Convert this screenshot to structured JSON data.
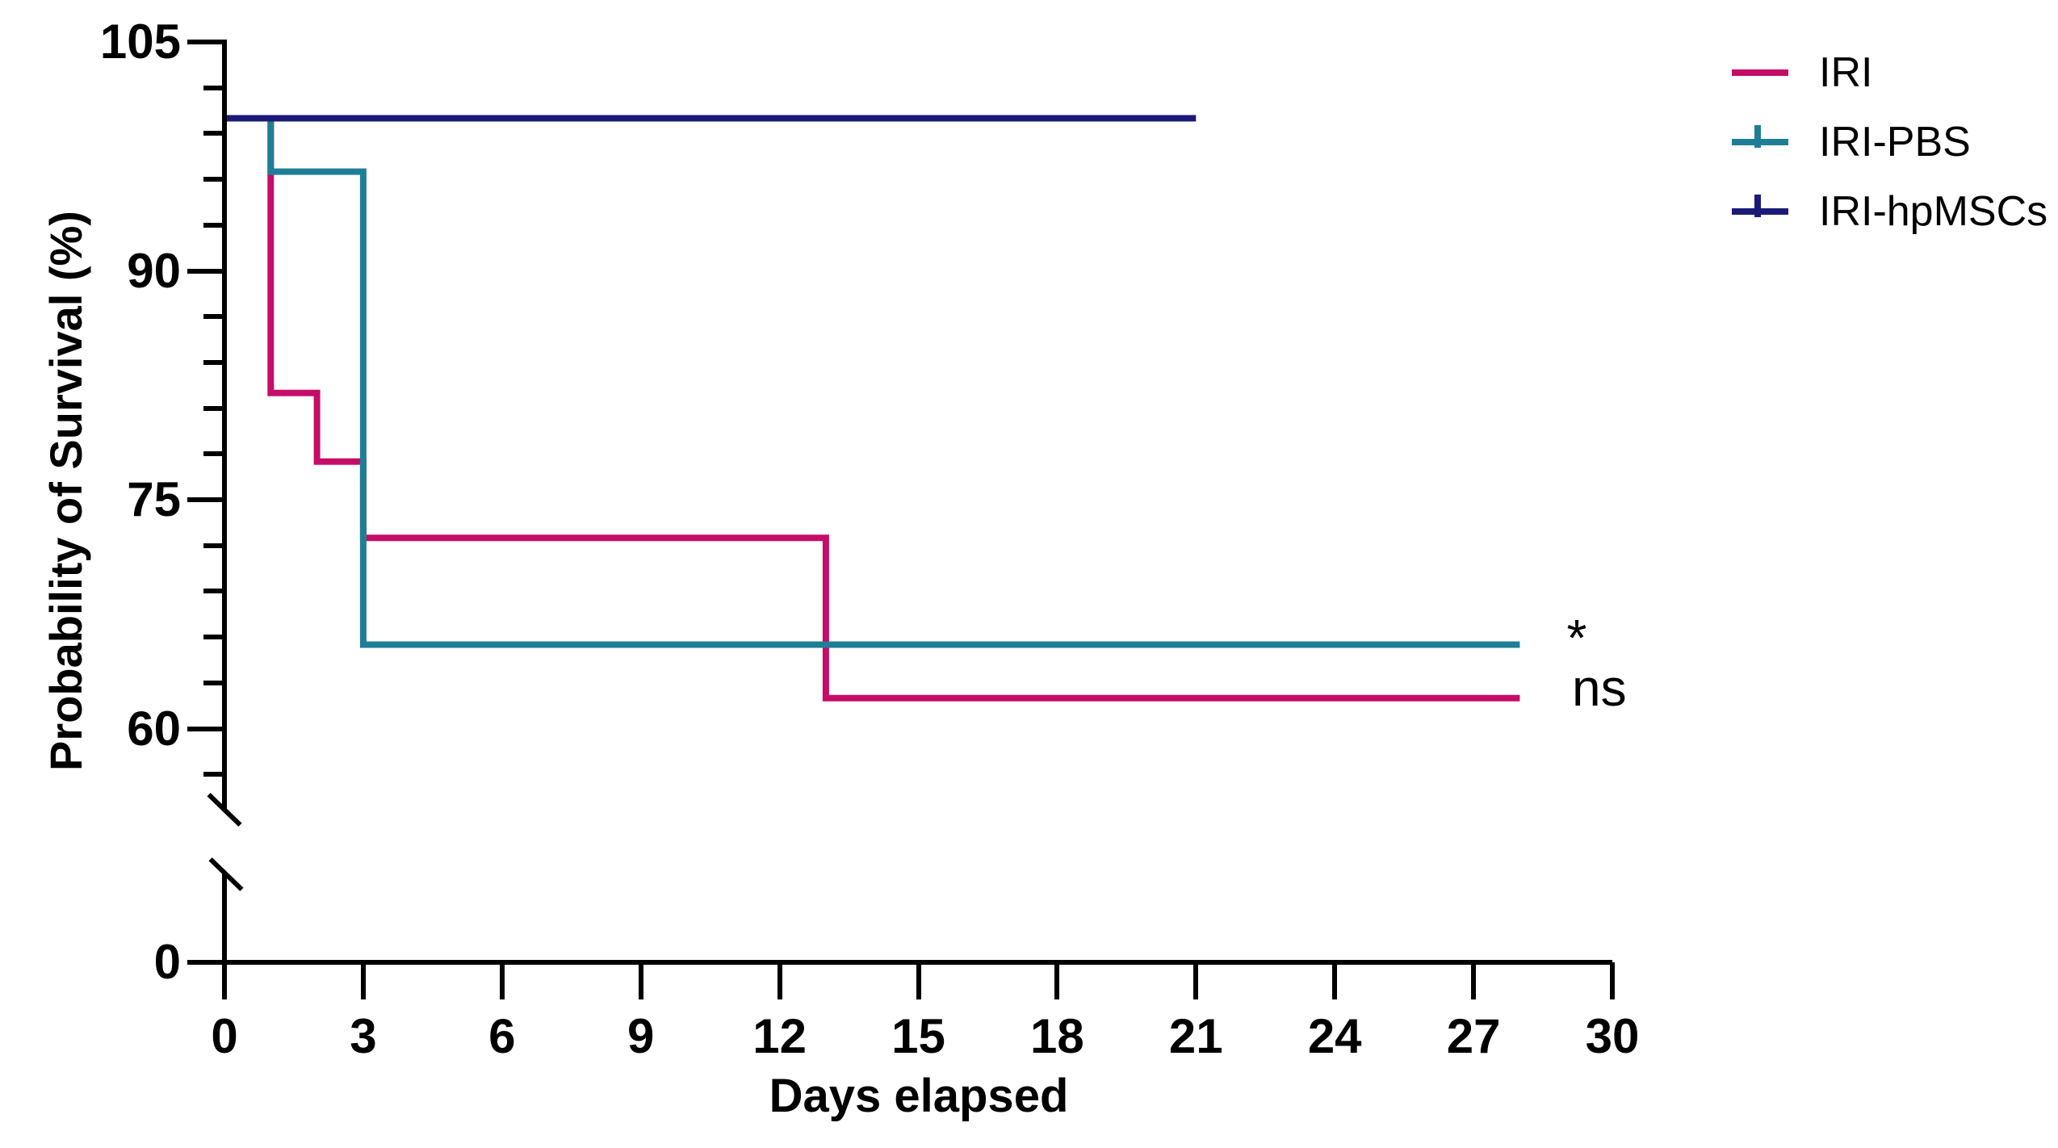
{
  "figure": {
    "background": "#ffffff",
    "axis_color": "#000000"
  },
  "x_axis": {
    "title": "Days elapsed",
    "tick_values": [
      0,
      3,
      6,
      9,
      12,
      15,
      18,
      21,
      24,
      27,
      30
    ],
    "tick_labels": [
      "0",
      "3",
      "6",
      "9",
      "12",
      "15",
      "18",
      "21",
      "24",
      "27",
      "30"
    ]
  },
  "y_axis": {
    "title": "Probability of Survival (%)",
    "tick_values": [
      105,
      90,
      75,
      60
    ],
    "tick_labels": [
      "105",
      "90",
      "75",
      "60"
    ],
    "minor_tick_values": [
      102,
      99,
      96,
      93,
      87,
      84,
      81,
      78,
      72,
      69,
      66,
      63,
      57
    ],
    "origin_label": "0",
    "has_axis_break": true
  },
  "legend": {
    "items": [
      {
        "label": "IRI",
        "color": "#c50d68",
        "censor_tick_symbol": false
      },
      {
        "label": "IRI-PBS",
        "color": "#1f7e96",
        "censor_tick_symbol": true
      },
      {
        "label": "IRI-hpMSCs",
        "color": "#1b1b77",
        "censor_tick_symbol": true
      }
    ]
  },
  "annotations": {
    "star": "*",
    "ns": "ns"
  },
  "chart_data": {
    "type": "line",
    "subtype": "kaplan-meier-step",
    "title": "",
    "xlabel": "Days elapsed",
    "ylabel": "Probability of Survival (%)",
    "xlim": [
      0,
      30
    ],
    "ylim_upper_segment": [
      57,
      105
    ],
    "y_axis_break_to_zero": true,
    "x_ticks": [
      0,
      3,
      6,
      9,
      12,
      15,
      18,
      21,
      24,
      27,
      30
    ],
    "y_major_ticks": [
      105,
      90,
      75,
      60,
      0
    ],
    "grid": false,
    "legend_position": "outside-top-right",
    "series": [
      {
        "name": "IRI",
        "color": "#c50d68",
        "start_value": 100,
        "events": [
          [
            1,
            82
          ],
          [
            2,
            77.5
          ],
          [
            3,
            72.5
          ],
          [
            13,
            62
          ]
        ],
        "end_day": 28,
        "significance_label": "ns"
      },
      {
        "name": "IRI-PBS",
        "color": "#1f7e96",
        "start_value": 100,
        "events": [
          [
            1,
            96.5
          ],
          [
            3,
            65.5
          ]
        ],
        "end_day": 28,
        "significance_label": "*"
      },
      {
        "name": "IRI-hpMSCs",
        "color": "#1b1b77",
        "start_value": 100,
        "events": [],
        "end_day": 21,
        "significance_label": ""
      }
    ]
  }
}
